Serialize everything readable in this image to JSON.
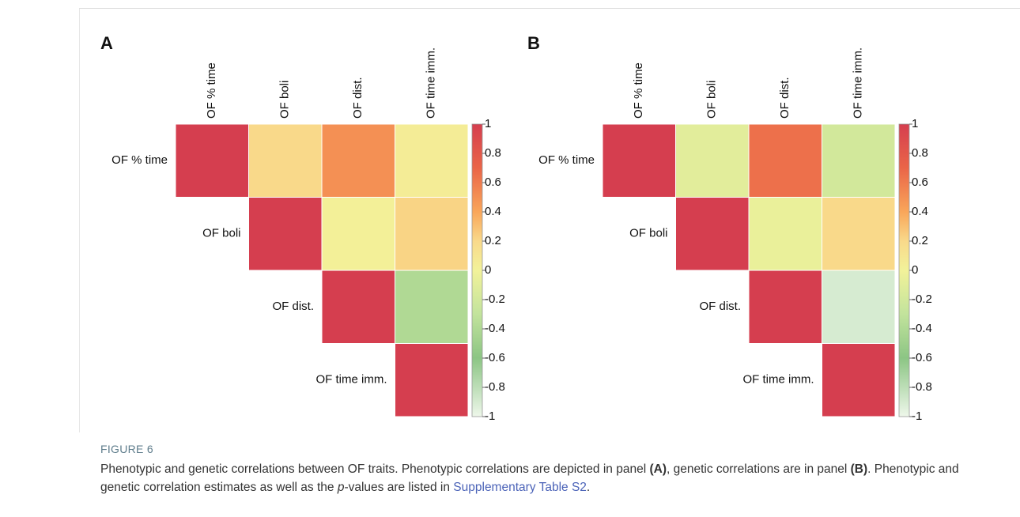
{
  "chart_data": [
    {
      "type": "heatmap",
      "title": "A",
      "categories": [
        "OF % time",
        "OF boli",
        "OF dist.",
        "OF time imm."
      ],
      "values": [
        [
          1,
          0.2,
          0.5,
          0.05
        ],
        [
          null,
          1,
          0.02,
          0.22
        ],
        [
          null,
          null,
          1,
          -0.4
        ],
        [
          null,
          null,
          null,
          1
        ]
      ],
      "zlim": [
        -1,
        1
      ],
      "zticks": [
        1,
        0.8,
        0.6,
        0.4,
        0.2,
        0,
        -0.2,
        -0.4,
        -0.6,
        -0.8,
        -1
      ],
      "colorscale": [
        [
          -1,
          "#eef7ea"
        ],
        [
          -0.6,
          "#8cc584"
        ],
        [
          -0.3,
          "#c2e39c"
        ],
        [
          0,
          "#f2f29a"
        ],
        [
          0.2,
          "#f9d98a"
        ],
        [
          0.4,
          "#f9a65a"
        ],
        [
          0.7,
          "#ea6548"
        ],
        [
          1,
          "#d53e4f"
        ]
      ]
    },
    {
      "type": "heatmap",
      "title": "B",
      "categories": [
        "OF % time",
        "OF boli",
        "OF dist.",
        "OF time imm."
      ],
      "values": [
        [
          1,
          -0.1,
          0.65,
          -0.2
        ],
        [
          null,
          1,
          -0.05,
          0.2
        ],
        [
          null,
          null,
          1,
          -0.9
        ],
        [
          null,
          null,
          null,
          1
        ]
      ],
      "zlim": [
        -1,
        1
      ],
      "zticks": [
        1,
        0.8,
        0.6,
        0.4,
        0.2,
        0,
        -0.2,
        -0.4,
        -0.6,
        -0.8,
        -1
      ],
      "colorscale": [
        [
          -1,
          "#eef7ea"
        ],
        [
          -0.6,
          "#8cc584"
        ],
        [
          -0.3,
          "#c2e39c"
        ],
        [
          0,
          "#f2f29a"
        ],
        [
          0.2,
          "#f9d98a"
        ],
        [
          0.4,
          "#f9a65a"
        ],
        [
          0.7,
          "#ea6548"
        ],
        [
          1,
          "#d53e4f"
        ]
      ]
    }
  ],
  "figure_label": "FIGURE 6",
  "caption": [
    "Phenotypic and genetic correlations between OF traits. Phenotypic correlations are depicted in panel ",
    "(A)",
    ", genetic correlations are in panel ",
    "(B)",
    ". Phenotypic and genetic correlation estimates as well as the ",
    "p",
    "-values are listed in ",
    "Supplementary Table S2",
    "."
  ]
}
